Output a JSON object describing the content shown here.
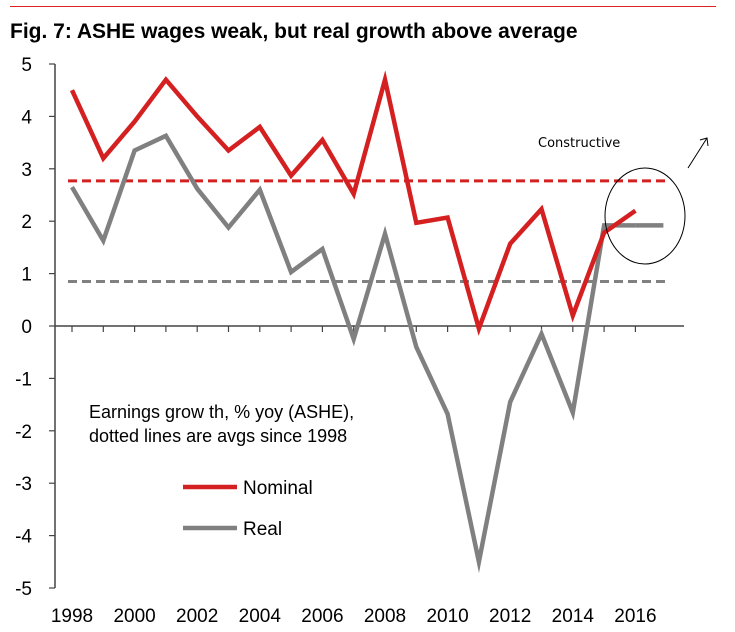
{
  "chart_data": {
    "type": "line",
    "title": "Fig. 7: ASHE wages weak, but real growth above average",
    "x": [
      1998,
      1999,
      2000,
      2001,
      2002,
      2003,
      2004,
      2005,
      2006,
      2007,
      2008,
      2009,
      2010,
      2011,
      2012,
      2013,
      2014,
      2015,
      2016
    ],
    "series": [
      {
        "name": "Nominal",
        "color": "#d42020",
        "values": [
          4.5,
          3.2,
          3.9,
          4.7,
          4.0,
          3.35,
          3.8,
          2.87,
          3.55,
          2.52,
          4.7,
          1.97,
          2.07,
          -0.05,
          1.57,
          2.23,
          0.2,
          1.78,
          2.2
        ]
      },
      {
        "name": "Real",
        "color": "#808080",
        "values": [
          2.65,
          1.63,
          3.35,
          3.63,
          2.62,
          1.88,
          2.6,
          1.03,
          1.47,
          -0.25,
          1.76,
          -0.4,
          -1.68,
          -4.5,
          -1.45,
          -0.15,
          -1.65,
          1.92,
          1.92
        ]
      }
    ],
    "averages": [
      {
        "series": "Nominal",
        "value": 2.77,
        "color": "#d42020"
      },
      {
        "series": "Real",
        "value": 0.85,
        "color": "#808080"
      }
    ],
    "x_ticks": [
      "1998",
      "2000",
      "2002",
      "2004",
      "2006",
      "2008",
      "2010",
      "2012",
      "2014",
      "2016"
    ],
    "y_ticks": [
      "5",
      "4",
      "3",
      "2",
      "1",
      "0",
      "-1",
      "-2",
      "-3",
      "-4",
      "-5"
    ],
    "ylim": [
      -5,
      5
    ],
    "xlabel": "",
    "ylabel": "",
    "grid": false,
    "note_lines": [
      "Earnings grow th, % yoy (ASHE),",
      "dotted lines are avgs since 1998"
    ],
    "legend": [
      {
        "label": "Nominal",
        "color": "#d42020"
      },
      {
        "label": "Real",
        "color": "#808080"
      }
    ],
    "annotation": "Constructive"
  }
}
